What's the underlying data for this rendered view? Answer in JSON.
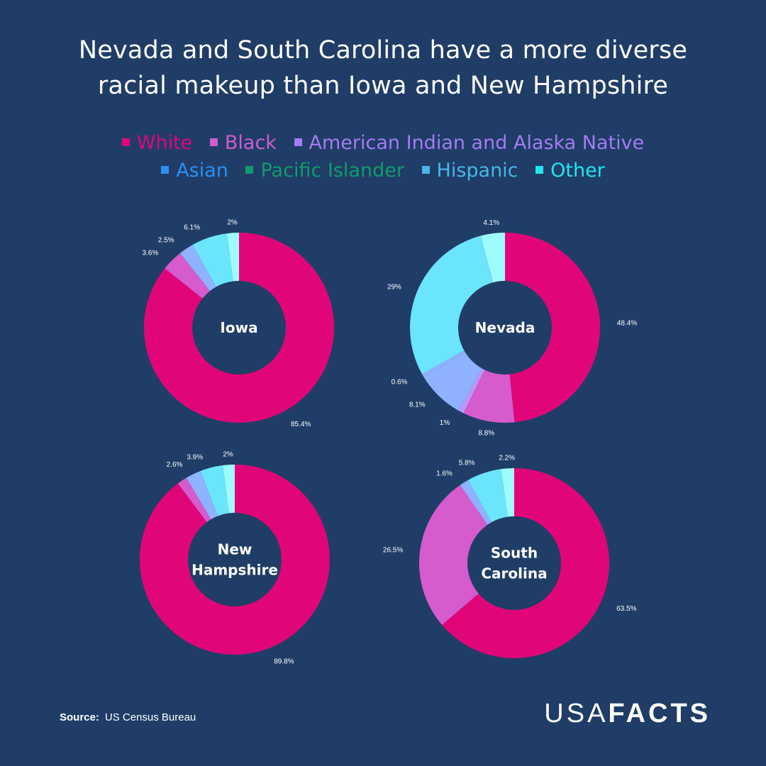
{
  "title_line1": "Nevada and South Carolina have a more diverse",
  "title_line2": "racial makeup than Iowa and New Hampshire",
  "legend": [
    {
      "label": "White",
      "color": "#e0067a"
    },
    {
      "label": "Black",
      "color": "#d05cce"
    },
    {
      "label": "American Indian and Alaska Native",
      "color": "#a47bf2"
    },
    {
      "label": "Asian",
      "color": "#2b8ff0"
    },
    {
      "label": "Pacific Islander",
      "color": "#119b6c"
    },
    {
      "label": "Hispanic",
      "color": "#49b6e8"
    },
    {
      "label": "Other",
      "color": "#22e6f0"
    }
  ],
  "slice_colors": {
    "White": "#e0067a",
    "Black": "#d65bcd",
    "American Indian and Alaska Native": "#b49af8",
    "Asian": "#8fb2ff",
    "Pacific Islander": "#8fb2ff",
    "Hispanic": "#6ae5fb",
    "Other": "#9ffcfd"
  },
  "chart_data": [
    {
      "type": "pie",
      "center_label": [
        "Iowa"
      ],
      "segments": [
        {
          "category": "White",
          "value": 85.4,
          "label": "85.4%"
        },
        {
          "category": "Black",
          "value": 3.6,
          "label": "3.6%"
        },
        {
          "category": "Asian",
          "value": 2.5,
          "label": "2.5%"
        },
        {
          "category": "Hispanic",
          "value": 6.1,
          "label": "6.1%"
        },
        {
          "category": "Other",
          "value": 2,
          "label": "2%"
        }
      ]
    },
    {
      "type": "pie",
      "center_label": [
        "Nevada"
      ],
      "segments": [
        {
          "category": "White",
          "value": 48.4,
          "label": "48.4%"
        },
        {
          "category": "Black",
          "value": 8.8,
          "label": "8.8%"
        },
        {
          "category": "American Indian and Alaska Native",
          "value": 1,
          "label": "1%"
        },
        {
          "category": "Asian",
          "value": 8.1,
          "label": "8.1%"
        },
        {
          "category": "Pacific Islander",
          "value": 0.6,
          "label": "0.6%"
        },
        {
          "category": "Hispanic",
          "value": 29,
          "label": "29%"
        },
        {
          "category": "Other",
          "value": 4.1,
          "label": "4.1%"
        }
      ]
    },
    {
      "type": "pie",
      "center_label": [
        "New",
        "Hampshire"
      ],
      "segments": [
        {
          "category": "White",
          "value": 89.8,
          "label": "89.8%"
        },
        {
          "category": "Black",
          "value": 1.7,
          "label": ""
        },
        {
          "category": "Asian",
          "value": 2.6,
          "label": "2.6%"
        },
        {
          "category": "Hispanic",
          "value": 3.9,
          "label": "3.9%"
        },
        {
          "category": "Other",
          "value": 2,
          "label": "2%"
        }
      ]
    },
    {
      "type": "pie",
      "center_label": [
        "South",
        "Carolina"
      ],
      "segments": [
        {
          "category": "White",
          "value": 63.5,
          "label": "63.5%"
        },
        {
          "category": "Black",
          "value": 26.5,
          "label": "26.5%"
        },
        {
          "category": "Asian",
          "value": 1.6,
          "label": "1.6%"
        },
        {
          "category": "Hispanic",
          "value": 5.8,
          "label": "5.8%"
        },
        {
          "category": "Other",
          "value": 2.2,
          "label": "2.2%"
        }
      ]
    }
  ],
  "source_label": "Source:",
  "source_text": "US Census Bureau",
  "logo_light": "USA",
  "logo_bold": "FACTS"
}
